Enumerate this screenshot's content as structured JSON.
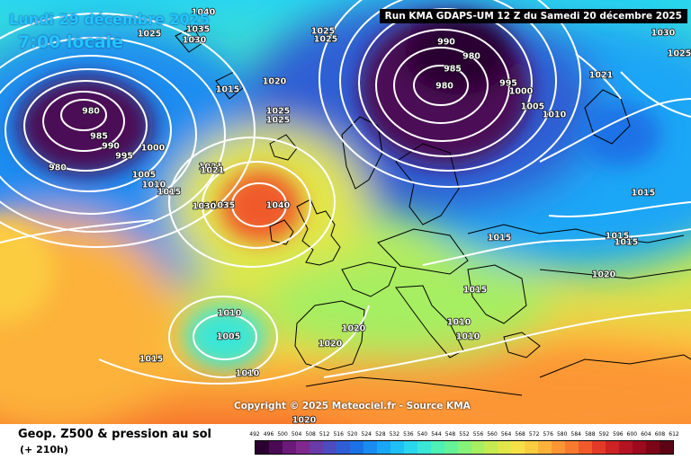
{
  "header": {
    "date": "Lundi 29 décembre 2025",
    "time": "7:00 locale",
    "run": "Run KMA GDAPS-UM 12 Z du Samedi 20 décembre 2025"
  },
  "copyright": "Copyright © 2025 Meteociel.fr - Source KMA",
  "footer": {
    "title": "Geop. Z500 & pression au sol",
    "subtitle": "(+ 210h)"
  },
  "scale": {
    "ticks": [
      "492",
      "496",
      "500",
      "504",
      "508",
      "512",
      "516",
      "520",
      "524",
      "528",
      "532",
      "536",
      "540",
      "544",
      "548",
      "552",
      "556",
      "560",
      "564",
      "568",
      "572",
      "576",
      "580",
      "584",
      "588",
      "592",
      "596",
      "600",
      "604",
      "608",
      "612"
    ],
    "colors": [
      "#2b0030",
      "#4b0a55",
      "#6a1a78",
      "#80288e",
      "#6a3aa8",
      "#4c4cc0",
      "#2f5ed4",
      "#1a72e6",
      "#1a8cf0",
      "#1aa6f6",
      "#1ec0f6",
      "#2ad6ee",
      "#3ae6d6",
      "#4ef0b6",
      "#66f296",
      "#86f27a",
      "#a6ee62",
      "#c6ea52",
      "#e2e64a",
      "#f6e048",
      "#fccc40",
      "#fcb23a",
      "#fc9634",
      "#f87a2e",
      "#f05a2a",
      "#e23a26",
      "#cc2224",
      "#b41422",
      "#9c0a1e",
      "#7c0618",
      "#5c0414"
    ]
  },
  "pressure_labels": [
    "980",
    "980",
    "985",
    "990",
    "995",
    "1000",
    "1005",
    "1010",
    "1015",
    "1015",
    "1020",
    "1025",
    "1030",
    "1035",
    "1040",
    "1040",
    "1025",
    "1025",
    "1025",
    "1021",
    "1035",
    "1040",
    "1021",
    "1030",
    "1005",
    "1010",
    "1015",
    "1020",
    "990",
    "985",
    "980",
    "980",
    "995",
    "1000",
    "1005",
    "1010",
    "1030",
    "1025",
    "1021",
    "1015",
    "1015",
    "1015",
    "1015",
    "1020",
    "1010",
    "1005",
    "1010",
    "1015",
    "1020",
    "1020",
    "1010",
    "1010",
    "1020",
    "1025",
    "1030"
  ],
  "colors": {
    "run_box_bg": "#000000",
    "date_text": "#22c5ff",
    "isobar": "#ffffff",
    "land_border": "#000000"
  }
}
